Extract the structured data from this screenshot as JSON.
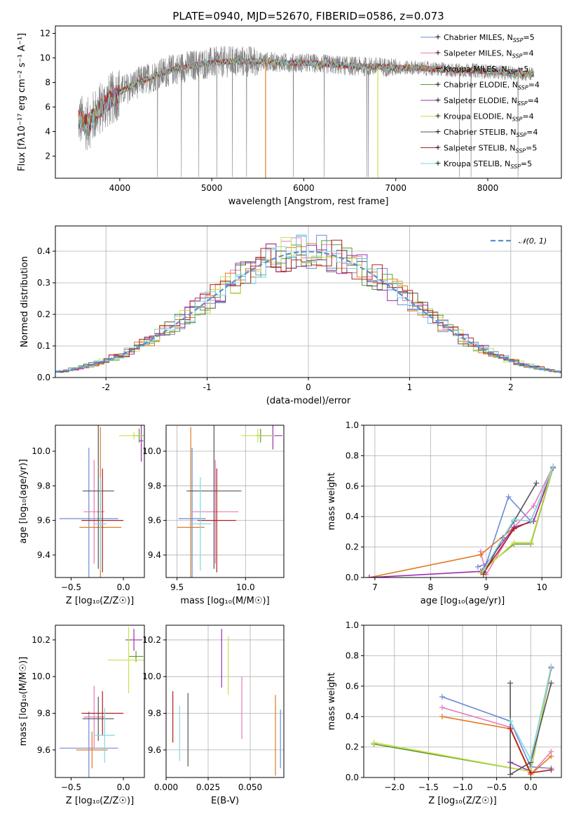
{
  "figure": {
    "title": "PLATE=0940, MJD=52670, FIBERID=0586, z=0.073"
  },
  "models": [
    {
      "name": "Chabrier MILES",
      "nssp": "5",
      "color": "#6a8bd6"
    },
    {
      "name": "Salpeter MILES",
      "nssp": "4",
      "color": "#e87ab5"
    },
    {
      "name": "Kroupa MILES",
      "nssp": "5",
      "color": "#e07a1f"
    },
    {
      "name": "Chabrier ELODIE",
      "nssp": "4",
      "color": "#5a9a32"
    },
    {
      "name": "Salpeter ELODIE",
      "nssp": "4",
      "color": "#9b30b0"
    },
    {
      "name": "Kroupa ELODIE",
      "nssp": "4",
      "color": "#c9e04a"
    },
    {
      "name": "Chabrier STELIB",
      "nssp": "4",
      "color": "#555555"
    },
    {
      "name": "Salpeter STELIB",
      "nssp": "5",
      "color": "#b0201e"
    },
    {
      "name": "Kroupa STELIB",
      "nssp": "5",
      "color": "#7ed8df"
    }
  ],
  "chart_data": [
    {
      "id": "spectrum",
      "type": "line",
      "title": "PLATE=0940, MJD=52670, FIBERID=0586, z=0.073",
      "xlabel": "wavelength [Angstrom, rest frame]",
      "ylabel": "Flux [fλ10⁻¹⁷ erg cm⁻² s⁻¹ A⁻¹]",
      "xlim": [
        3300,
        8800
      ],
      "ylim": [
        0.2,
        12.6
      ],
      "xticks": [
        4000,
        5000,
        6000,
        7000,
        8000
      ],
      "yticks": [
        2,
        4,
        6,
        8,
        10,
        12
      ],
      "grid": false,
      "legend_position": "top-right",
      "data_color": "#808080",
      "model_continuum": {
        "x": [
          3550,
          3650,
          3800,
          4000,
          4200,
          4400,
          4600,
          4800,
          5000,
          5200,
          5400,
          5600,
          5800,
          6000,
          6200,
          6400,
          6600,
          6800,
          7000,
          7200,
          7400,
          7600,
          7800,
          8000,
          8200,
          8400,
          8500
        ],
        "y": [
          5.0,
          4.6,
          6.0,
          7.2,
          8.0,
          8.6,
          9.1,
          9.4,
          9.6,
          9.7,
          9.7,
          9.7,
          9.6,
          9.6,
          9.5,
          9.4,
          9.3,
          9.3,
          9.2,
          9.2,
          9.1,
          9.0,
          9.0,
          8.9,
          8.8,
          8.7,
          8.7
        ]
      }
    },
    {
      "id": "residual-distribution",
      "type": "line",
      "xlabel": "(data-model)/error",
      "ylabel": "Normed distribution",
      "xlim": [
        -2.5,
        2.5
      ],
      "ylim": [
        0,
        0.48
      ],
      "xticks": [
        -2,
        -1,
        0,
        1,
        2
      ],
      "yticks": [
        0.0,
        0.1,
        0.2,
        0.3,
        0.4
      ],
      "grid": true,
      "legend_position": "top-right",
      "reference_curve": {
        "label": "𝒩(0, 1)",
        "color": "#5b8bd6",
        "style": "dashed"
      }
    },
    {
      "id": "age-vs-z",
      "type": "scatter",
      "xlabel": "Z [log₁₀(Z/Z☉)]",
      "ylabel": "age  [log₁₀(age/yr)]",
      "xlim": [
        -0.65,
        0.2
      ],
      "ylim": [
        9.27,
        10.15
      ],
      "xticks": [
        -0.5,
        0.0
      ],
      "xtick_labels": [
        "−0.5",
        "0.0"
      ],
      "yticks": [
        9.4,
        9.6,
        9.8,
        10.0
      ],
      "grid": false,
      "points": [
        {
          "model": 0,
          "x": -0.33,
          "y": 9.61,
          "xerr": 0.28,
          "yerr": 0.41
        },
        {
          "model": 1,
          "x": -0.28,
          "y": 9.65,
          "xerr": 0.1,
          "yerr": 0.3
        },
        {
          "model": 2,
          "x": -0.22,
          "y": 9.56,
          "xerr": 0.2,
          "yerr": 0.58
        },
        {
          "model": 3,
          "x": 0.15,
          "y": 10.09,
          "xerr": 0.05,
          "yerr": 0.04
        },
        {
          "model": 4,
          "x": 0.17,
          "y": 10.06,
          "xerr": 0.02,
          "yerr": 0.12
        },
        {
          "model": 5,
          "x": 0.1,
          "y": 10.09,
          "xerr": 0.14,
          "yerr": 0.02
        },
        {
          "model": 6,
          "x": -0.24,
          "y": 9.77,
          "xerr": 0.15,
          "yerr": 0.45
        },
        {
          "model": 7,
          "x": -0.2,
          "y": 9.6,
          "xerr": 0.2,
          "yerr": 0.3
        },
        {
          "model": 8,
          "x": -0.22,
          "y": 9.58,
          "xerr": 0.06,
          "yerr": 0.27
        }
      ]
    },
    {
      "id": "age-vs-mass",
      "type": "scatter",
      "xlabel": "mass [log₁₀(M/M☉)]",
      "xlim": [
        9.42,
        10.28
      ],
      "ylim": [
        9.27,
        10.15
      ],
      "xticks": [
        9.5,
        10.0
      ],
      "xtick_labels": [
        "9.5",
        "10.0"
      ],
      "yticks": [
        9.4,
        9.6,
        9.8,
        10.0
      ],
      "grid": true,
      "points": [
        {
          "model": 0,
          "x": 9.61,
          "y": 9.61,
          "xerr": 0.1,
          "yerr": 0.41
        },
        {
          "model": 1,
          "x": 9.78,
          "y": 9.65,
          "xerr": 0.17,
          "yerr": 0.3
        },
        {
          "model": 2,
          "x": 9.6,
          "y": 9.56,
          "xerr": 0.1,
          "yerr": 0.58
        },
        {
          "model": 3,
          "x": 10.11,
          "y": 10.09,
          "xerr": 0.03,
          "yerr": 0.04
        },
        {
          "model": 4,
          "x": 10.2,
          "y": 10.09,
          "xerr": 0.07,
          "yerr": 0.08
        },
        {
          "model": 5,
          "x": 10.09,
          "y": 10.09,
          "xerr": 0.12,
          "yerr": 0.04
        },
        {
          "model": 6,
          "x": 9.77,
          "y": 9.77,
          "xerr": 0.2,
          "yerr": 0.45
        },
        {
          "model": 7,
          "x": 9.79,
          "y": 9.6,
          "xerr": 0.14,
          "yerr": 0.3
        },
        {
          "model": 8,
          "x": 9.67,
          "y": 9.58,
          "xerr": 0.08,
          "yerr": 0.27
        }
      ]
    },
    {
      "id": "mass-weight-vs-age",
      "type": "line",
      "xlabel": "age  [log₁₀(age/yr)]",
      "ylabel": "mass weight",
      "xlim": [
        6.8,
        10.35
      ],
      "ylim": [
        0,
        1.0
      ],
      "xticks": [
        7,
        8,
        9,
        10
      ],
      "yticks": [
        0.0,
        0.2,
        0.4,
        0.6,
        0.8,
        1.0
      ],
      "grid": true,
      "series": [
        {
          "model": 0,
          "x": [
            8.85,
            9.0,
            9.4,
            9.8,
            10.2
          ],
          "y": [
            0.07,
            0.09,
            0.53,
            0.37,
            0.73
          ]
        },
        {
          "model": 1,
          "x": [
            8.9,
            9.0,
            9.5,
            9.85,
            10.2
          ],
          "y": [
            0.17,
            0.02,
            0.33,
            0.47,
            0.73
          ]
        },
        {
          "model": 2,
          "x": [
            6.9,
            8.9,
            9.5,
            9.85,
            10.2
          ],
          "y": [
            0.0,
            0.15,
            0.33,
            0.37,
            0.73
          ]
        },
        {
          "model": 3,
          "x": [
            8.9,
            9.5,
            9.8,
            10.2
          ],
          "y": [
            0.04,
            0.22,
            0.22,
            0.72
          ]
        },
        {
          "model": 4,
          "x": [
            6.9,
            8.9,
            9.5,
            9.85,
            10.2
          ],
          "y": [
            0.0,
            0.04,
            0.33,
            0.37,
            0.72
          ]
        },
        {
          "model": 5,
          "x": [
            8.9,
            9.5,
            9.8,
            10.2
          ],
          "y": [
            0.03,
            0.23,
            0.23,
            0.73
          ]
        },
        {
          "model": 6,
          "x": [
            8.95,
            9.3,
            9.5,
            9.9
          ],
          "y": [
            0.02,
            0.26,
            0.37,
            0.62
          ]
        },
        {
          "model": 7,
          "x": [
            8.95,
            9.5,
            9.8
          ],
          "y": [
            0.03,
            0.32,
            0.37
          ]
        },
        {
          "model": 8,
          "x": [
            8.95,
            9.5,
            9.8,
            10.2
          ],
          "y": [
            0.05,
            0.38,
            0.37,
            0.73
          ]
        }
      ]
    },
    {
      "id": "mass-vs-z",
      "type": "scatter",
      "xlabel": "Z [log₁₀(Z/Z☉)]",
      "ylabel": "mass [log₁₀(M/M☉)]",
      "xlim": [
        -0.65,
        0.2
      ],
      "ylim": [
        9.45,
        10.28
      ],
      "xticks": [
        -0.5,
        0.0
      ],
      "xtick_labels": [
        "−0.5",
        "0.0"
      ],
      "yticks": [
        9.6,
        9.8,
        10.0,
        10.2
      ],
      "grid": false,
      "points": [
        {
          "model": 0,
          "x": -0.33,
          "y": 9.61,
          "xerr": 0.28,
          "yerr": 0.2
        },
        {
          "model": 1,
          "x": -0.28,
          "y": 9.78,
          "xerr": 0.1,
          "yerr": 0.17
        },
        {
          "model": 2,
          "x": -0.3,
          "y": 9.6,
          "xerr": 0.15,
          "yerr": 0.1
        },
        {
          "model": 3,
          "x": 0.12,
          "y": 10.11,
          "xerr": 0.07,
          "yerr": 0.03
        },
        {
          "model": 4,
          "x": 0.1,
          "y": 10.2,
          "xerr": 0.08,
          "yerr": 0.06
        },
        {
          "model": 5,
          "x": 0.05,
          "y": 10.09,
          "xerr": 0.2,
          "yerr": 0.18
        },
        {
          "model": 6,
          "x": -0.24,
          "y": 9.77,
          "xerr": 0.15,
          "yerr": 0.12
        },
        {
          "model": 7,
          "x": -0.2,
          "y": 9.8,
          "xerr": 0.2,
          "yerr": 0.12
        },
        {
          "model": 8,
          "x": -0.18,
          "y": 9.68,
          "xerr": 0.1,
          "yerr": 0.15
        }
      ]
    },
    {
      "id": "mass-vs-ebv",
      "type": "scatter",
      "xlabel": "E(B-V)",
      "xlim": [
        0.0,
        0.07
      ],
      "ylim": [
        9.45,
        10.28
      ],
      "xticks": [
        0.0,
        0.025,
        0.05
      ],
      "xtick_labels": [
        "0.000",
        "0.025",
        "0.050"
      ],
      "yticks": [
        9.6,
        9.8,
        10.0,
        10.2
      ],
      "grid": true,
      "points": [
        {
          "model": 0,
          "x": 0.068,
          "y": 9.66,
          "xerr": 0,
          "yerr": 0.16
        },
        {
          "model": 1,
          "x": 0.045,
          "y": 9.83,
          "xerr": 0,
          "yerr": 0.17
        },
        {
          "model": 2,
          "x": 0.065,
          "y": 9.68,
          "xerr": 0,
          "yerr": 0.22
        },
        {
          "model": 4,
          "x": 0.033,
          "y": 10.1,
          "xerr": 0,
          "yerr": 0.16
        },
        {
          "model": 5,
          "x": 0.037,
          "y": 10.06,
          "xerr": 0,
          "yerr": 0.16
        },
        {
          "model": 6,
          "x": 0.013,
          "y": 9.71,
          "xerr": 0,
          "yerr": 0.2
        },
        {
          "model": 7,
          "x": 0.004,
          "y": 9.78,
          "xerr": 0,
          "yerr": 0.14
        },
        {
          "model": 8,
          "x": 0.008,
          "y": 9.69,
          "xerr": 0,
          "yerr": 0.15
        }
      ]
    },
    {
      "id": "mass-weight-vs-z",
      "type": "line",
      "xlabel": "Z [log₁₀(Z/Z☉)]",
      "ylabel": "mass weight",
      "xlim": [
        -2.45,
        0.45
      ],
      "ylim": [
        0,
        1.0
      ],
      "xticks": [
        -2.0,
        -1.5,
        -1.0,
        -0.5,
        0.0
      ],
      "xtick_labels": [
        "−2.0",
        "−1.5",
        "−1.0",
        "−0.5",
        "0.0"
      ],
      "yticks": [
        0.0,
        0.2,
        0.4,
        0.6,
        0.8,
        1.0
      ],
      "grid": true,
      "series": [
        {
          "model": 0,
          "x": [
            -1.3,
            -0.3,
            0.0,
            0.3
          ],
          "y": [
            0.53,
            0.37,
            0.07,
            0.06
          ]
        },
        {
          "model": 1,
          "x": [
            -1.3,
            -0.3,
            0.0,
            0.3
          ],
          "y": [
            0.46,
            0.33,
            0.02,
            0.17
          ]
        },
        {
          "model": 2,
          "x": [
            -1.3,
            -0.3,
            0.0,
            0.3
          ],
          "y": [
            0.4,
            0.32,
            0.02,
            0.14
          ]
        },
        {
          "model": 3,
          "x": [
            -2.3,
            0.0,
            0.3
          ],
          "y": [
            0.22,
            0.04,
            0.72
          ]
        },
        {
          "model": 4,
          "x": [
            -0.3,
            0.0,
            0.3
          ],
          "y": [
            0.1,
            0.04,
            0.72
          ]
        },
        {
          "model": 5,
          "x": [
            -2.3,
            0.0,
            0.3
          ],
          "y": [
            0.23,
            0.04,
            0.73
          ]
        },
        {
          "model": 6,
          "x": [
            -0.3,
            -0.3,
            0.0,
            0.3
          ],
          "y": [
            0.62,
            0.02,
            0.1,
            0.62
          ]
        },
        {
          "model": 7,
          "x": [
            -0.3,
            0.0,
            0.3
          ],
          "y": [
            0.32,
            0.03,
            0.05
          ]
        },
        {
          "model": 8,
          "x": [
            -0.3,
            0.0,
            0.3
          ],
          "y": [
            0.37,
            0.12,
            0.73
          ]
        }
      ]
    }
  ]
}
